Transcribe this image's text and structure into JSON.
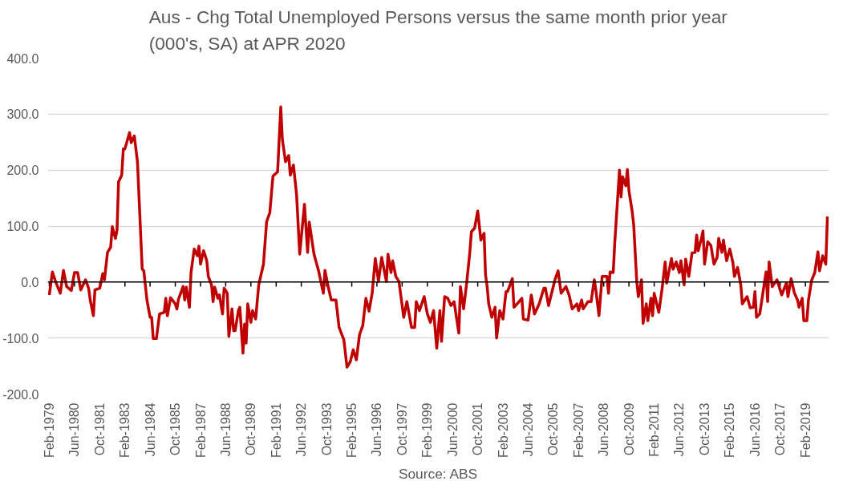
{
  "chart_data": {
    "type": "line",
    "title": "Aus - Chg Total Unemployed Persons versus the same month prior year\n(000's, SA) at APR 2020",
    "annotations": [
      "Source: ABS"
    ],
    "x": [
      "1979-02",
      "1979-04",
      "1979-06",
      "1979-09",
      "1979-11",
      "1980-01",
      "1980-04",
      "1980-06",
      "1980-08",
      "1980-10",
      "1981-01",
      "1981-03",
      "1981-04",
      "1981-06",
      "1981-07",
      "1981-10",
      "1981-12",
      "1982-01",
      "1982-03",
      "1982-05",
      "1982-06",
      "1982-08",
      "1982-09",
      "1982-10",
      "1982-12",
      "1983-01",
      "1983-02",
      "1983-05",
      "1983-06",
      "1983-08",
      "1983-10",
      "1984-01",
      "1984-02",
      "1984-04",
      "1984-06",
      "1984-07",
      "1984-08",
      "1984-10",
      "1984-12",
      "1985-03",
      "1985-04",
      "1985-05",
      "1985-07",
      "1985-10",
      "1985-11",
      "1985-12",
      "1986-03",
      "1986-04",
      "1986-05",
      "1986-07",
      "1986-08",
      "1986-10",
      "1986-12",
      "1987-01",
      "1987-02",
      "1987-04",
      "1987-06",
      "1987-07",
      "1987-09",
      "1987-10",
      "1987-11",
      "1988-01",
      "1988-02",
      "1988-04",
      "1988-05",
      "1988-07",
      "1988-08",
      "1988-10",
      "1988-11",
      "1988-12",
      "1989-02",
      "1989-03",
      "1989-05",
      "1989-06",
      "1989-07",
      "1989-08",
      "1989-10",
      "1989-11",
      "1990-01",
      "1990-03",
      "1990-06",
      "1990-08",
      "1990-10",
      "1990-12",
      "1991-03",
      "1991-05",
      "1991-06",
      "1991-08",
      "1991-10",
      "1991-11",
      "1992-01",
      "1992-03",
      "1992-05",
      "1992-08",
      "1992-10",
      "1992-11",
      "1993-02",
      "1993-05",
      "1993-08",
      "1993-09",
      "1993-11",
      "1994-01",
      "1994-04",
      "1994-06",
      "1994-09",
      "1994-11",
      "1995-01",
      "1995-03",
      "1995-05",
      "1995-07",
      "1995-09",
      "1995-11",
      "1996-01",
      "1996-03",
      "1996-05",
      "1996-07",
      "1996-09",
      "1996-12",
      "1997-01",
      "1997-03",
      "1997-04",
      "1997-06",
      "1997-08",
      "1997-11",
      "1998-01",
      "1998-04",
      "1998-06",
      "1998-07",
      "1998-09",
      "1998-12",
      "1999-02",
      "1999-04",
      "1999-06",
      "1999-08",
      "1999-10",
      "1999-11",
      "2000-01",
      "2000-03",
      "2000-05",
      "2000-07",
      "2000-10",
      "2000-11",
      "2001-01",
      "2001-03",
      "2001-05",
      "2001-06",
      "2001-08",
      "2001-10",
      "2001-12",
      "2002-02",
      "2002-03",
      "2002-04",
      "2002-05",
      "2002-07",
      "2002-09",
      "2002-10",
      "2002-12",
      "2003-02",
      "2003-04",
      "2003-05",
      "2003-08",
      "2003-09",
      "2003-11",
      "2004-02",
      "2004-03",
      "2004-06",
      "2004-08",
      "2004-10",
      "2005-01",
      "2005-04",
      "2005-05",
      "2005-07",
      "2005-11",
      "2006-01",
      "2006-03",
      "2006-06",
      "2006-08",
      "2006-10",
      "2007-01",
      "2007-02",
      "2007-04",
      "2007-05",
      "2007-08",
      "2007-10",
      "2007-12",
      "2008-01",
      "2008-03",
      "2008-05",
      "2008-08",
      "2008-09",
      "2008-10",
      "2008-12",
      "2009-01",
      "2009-04",
      "2009-05",
      "2009-06",
      "2009-08",
      "2009-09",
      "2009-10",
      "2009-12",
      "2010-01",
      "2010-03",
      "2010-04",
      "2010-06",
      "2010-07",
      "2010-09",
      "2010-10",
      "2010-12",
      "2011-01",
      "2011-02",
      "2011-05",
      "2011-07",
      "2011-09",
      "2011-10",
      "2012-01",
      "2012-02",
      "2012-04",
      "2012-06",
      "2012-07",
      "2012-09",
      "2012-10",
      "2012-12",
      "2013-02",
      "2013-04",
      "2013-05",
      "2013-06",
      "2013-08",
      "2013-09",
      "2013-10",
      "2013-12",
      "2014-02",
      "2014-04",
      "2014-06",
      "2014-07",
      "2014-09",
      "2014-10",
      "2014-12",
      "2015-02",
      "2015-04",
      "2015-05",
      "2015-07",
      "2015-09",
      "2015-10",
      "2016-01",
      "2016-03",
      "2016-05",
      "2016-06",
      "2016-07",
      "2016-09",
      "2016-11",
      "2017-01",
      "2017-02",
      "2017-03",
      "2017-05",
      "2017-08",
      "2017-11",
      "2018-02",
      "2018-03",
      "2018-05",
      "2018-07",
      "2018-09",
      "2018-10",
      "2018-12",
      "2019-01",
      "2019-03",
      "2019-04",
      "2019-06",
      "2019-08",
      "2019-10",
      "2019-11",
      "2020-01",
      "2020-03",
      "2020-04"
    ],
    "series": [
      {
        "color": "#c00000",
        "values": [
          -23,
          18,
          1,
          -20,
          21,
          -8,
          -15,
          17,
          17,
          -14,
          4,
          -11,
          -32,
          -60,
          -14,
          -11,
          15,
          4,
          53,
          62,
          99,
          78,
          93,
          179,
          191,
          238,
          238,
          267,
          249,
          261,
          215,
          23,
          20,
          -32,
          -63,
          -63,
          -101,
          -101,
          -57,
          -54,
          -29,
          -60,
          -28,
          -39,
          -48,
          -31,
          -8,
          -32,
          -9,
          -45,
          17,
          59,
          47,
          64,
          32,
          56,
          38,
          10,
          -5,
          -35,
          -9,
          -29,
          -23,
          -57,
          -11,
          -20,
          -97,
          -48,
          -87,
          -87,
          -51,
          -45,
          -127,
          -75,
          -109,
          -39,
          -72,
          -51,
          -66,
          -5,
          32,
          108,
          124,
          189,
          197,
          313,
          255,
          215,
          226,
          191,
          209,
          157,
          50,
          139,
          53,
          107,
          50,
          20,
          -20,
          21,
          -8,
          -32,
          -32,
          -81,
          -103,
          -152,
          -143,
          -121,
          -139,
          -94,
          -78,
          -29,
          -52,
          -20,
          42,
          1,
          44,
          1,
          50,
          17,
          38,
          10,
          1,
          -63,
          -35,
          -81,
          -81,
          -35,
          -51,
          -26,
          -57,
          -72,
          -51,
          -118,
          -51,
          -106,
          -26,
          -29,
          -42,
          -35,
          -91,
          -8,
          -48,
          -2,
          53,
          90,
          96,
          127,
          75,
          87,
          13,
          -8,
          -39,
          -63,
          -45,
          -100,
          -51,
          -66,
          -17,
          -17,
          6,
          -45,
          -39,
          -29,
          -66,
          -68,
          -23,
          -57,
          -39,
          -11,
          -11,
          -42,
          4,
          20,
          -20,
          -8,
          -23,
          -48,
          -39,
          -51,
          -32,
          -48,
          -35,
          -35,
          4,
          -14,
          -60,
          10,
          10,
          -20,
          18,
          17,
          72,
          200,
          152,
          188,
          172,
          201,
          163,
          127,
          102,
          1,
          -26,
          4,
          -74,
          -39,
          -69,
          -29,
          -60,
          -20,
          -54,
          -14,
          36,
          -2,
          42,
          23,
          36,
          17,
          38,
          -5,
          41,
          10,
          52,
          53,
          84,
          56,
          78,
          91,
          32,
          72,
          65,
          32,
          44,
          78,
          53,
          75,
          38,
          59,
          35,
          10,
          26,
          -5,
          -39,
          -26,
          -46,
          -45,
          -17,
          -63,
          -57,
          -20,
          18,
          -35,
          36,
          -8,
          4,
          -23,
          -1,
          -26,
          6,
          -19,
          -32,
          -45,
          -29,
          -69,
          -69,
          -32,
          3,
          17,
          54,
          20,
          47,
          32,
          117
        ]
      }
    ],
    "xlim": [
      "1979-01",
      "2020-05"
    ],
    "xticks": [
      {
        "value": "1979-02",
        "label": "Feb-1979"
      },
      {
        "value": "1980-06",
        "label": "Jun-1980"
      },
      {
        "value": "1981-10",
        "label": "Oct-1981"
      },
      {
        "value": "1983-02",
        "label": "Feb-1983"
      },
      {
        "value": "1984-06",
        "label": "Jun-1984"
      },
      {
        "value": "1985-10",
        "label": "Oct-1985"
      },
      {
        "value": "1987-02",
        "label": "Feb-1987"
      },
      {
        "value": "1988-06",
        "label": "Jun-1988"
      },
      {
        "value": "1989-10",
        "label": "Oct-1989"
      },
      {
        "value": "1991-02",
        "label": "Feb-1991"
      },
      {
        "value": "1992-06",
        "label": "Jun-1992"
      },
      {
        "value": "1993-10",
        "label": "Oct-1993"
      },
      {
        "value": "1995-02",
        "label": "Feb-1995"
      },
      {
        "value": "1996-06",
        "label": "Jun-1996"
      },
      {
        "value": "1997-10",
        "label": "Oct-1997"
      },
      {
        "value": "1999-02",
        "label": "Feb-1999"
      },
      {
        "value": "2000-06",
        "label": "Jun-2000"
      },
      {
        "value": "2001-10",
        "label": "Oct-2001"
      },
      {
        "value": "2003-02",
        "label": "Feb-2003"
      },
      {
        "value": "2004-06",
        "label": "Jun-2004"
      },
      {
        "value": "2005-10",
        "label": "Oct-2005"
      },
      {
        "value": "2007-02",
        "label": "Feb-2007"
      },
      {
        "value": "2008-06",
        "label": "Jun-2008"
      },
      {
        "value": "2009-10",
        "label": "Oct-2009"
      },
      {
        "value": "2011-02",
        "label": "Feb-2011"
      },
      {
        "value": "2012-06",
        "label": "Jun-2012"
      },
      {
        "value": "2013-10",
        "label": "Oct-2013"
      },
      {
        "value": "2015-02",
        "label": "Feb-2015"
      },
      {
        "value": "2016-06",
        "label": "Jun-2016"
      },
      {
        "value": "2017-10",
        "label": "Oct-2017"
      },
      {
        "value": "2019-02",
        "label": "Feb-2019"
      }
    ],
    "ylim": [
      -200,
      400
    ],
    "yticks": [
      {
        "value": -200,
        "label": "-200.0"
      },
      {
        "value": -100,
        "label": "-100.0"
      },
      {
        "value": 0,
        "label": "0.0"
      },
      {
        "value": 100,
        "label": "100.0"
      },
      {
        "value": 200,
        "label": "200.0"
      },
      {
        "value": 300,
        "label": "300.0"
      },
      {
        "value": 400,
        "label": "400.0"
      }
    ],
    "ref_lines": [
      {
        "axis": "y",
        "value": 0,
        "color": "#000000"
      }
    ],
    "grid": "y",
    "marker": "none",
    "line_style": "solid"
  }
}
